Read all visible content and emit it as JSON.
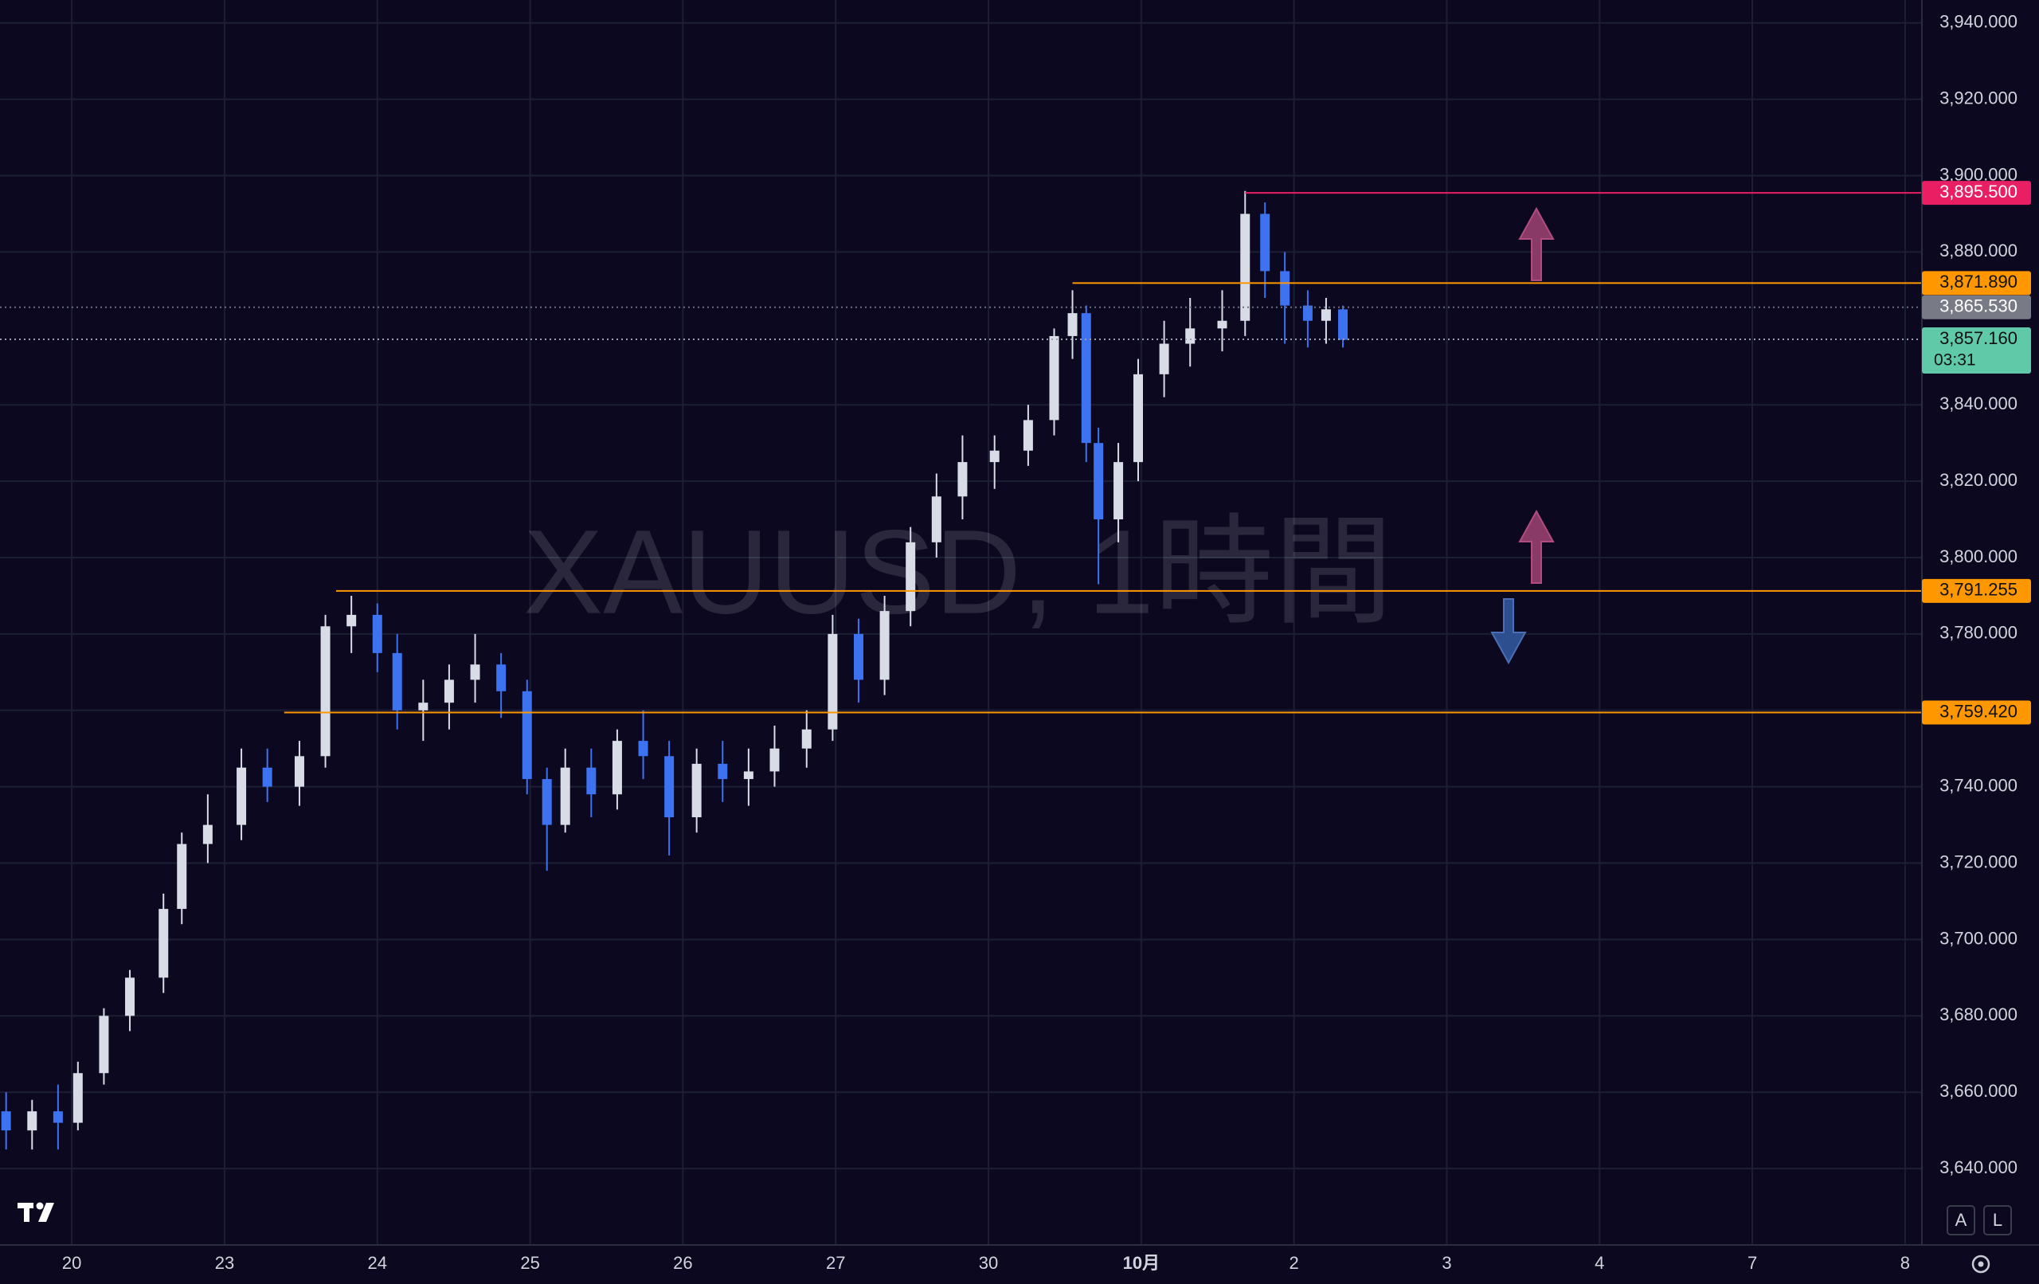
{
  "chart_data": {
    "type": "candlestick",
    "watermark": "XAUUSD, 1時間",
    "xlim": [
      -0.47,
      12.11
    ],
    "ylim": [
      3620,
      3946
    ],
    "grid": true,
    "up_color": "#d8dce6",
    "down_color": "#3d72f0",
    "xticks": [
      {
        "value": 0,
        "label": "20"
      },
      {
        "value": 1,
        "label": "23"
      },
      {
        "value": 2,
        "label": "24"
      },
      {
        "value": 3,
        "label": "25"
      },
      {
        "value": 4,
        "label": "26"
      },
      {
        "value": 5,
        "label": "27"
      },
      {
        "value": 6,
        "label": "30"
      },
      {
        "value": 7,
        "label": "10月"
      },
      {
        "value": 8,
        "label": "2"
      },
      {
        "value": 9,
        "label": "3"
      },
      {
        "value": 10,
        "label": "4"
      },
      {
        "value": 11,
        "label": "7"
      },
      {
        "value": 12,
        "label": "8"
      }
    ],
    "yticks": [
      {
        "value": 3640,
        "label": "3,640.000"
      },
      {
        "value": 3660,
        "label": "3,660.000"
      },
      {
        "value": 3680,
        "label": "3,680.000"
      },
      {
        "value": 3700,
        "label": "3,700.000"
      },
      {
        "value": 3720,
        "label": "3,720.000"
      },
      {
        "value": 3740,
        "label": "3,740.000"
      },
      {
        "value": 3760,
        "label": "3,760.000"
      },
      {
        "value": 3780,
        "label": "3,780.000"
      },
      {
        "value": 3800,
        "label": "3,800.000"
      },
      {
        "value": 3820,
        "label": "3,820.000"
      },
      {
        "value": 3840,
        "label": "3,840.000"
      },
      {
        "value": 3880,
        "label": "3,880.000"
      },
      {
        "value": 3900,
        "label": "3,900.000"
      },
      {
        "value": 3920,
        "label": "3,920.000"
      },
      {
        "value": 3940,
        "label": "3,940.000"
      }
    ],
    "x": [
      -0.43,
      -0.26,
      -0.09,
      0.04,
      0.21,
      0.38,
      0.6,
      0.72,
      0.89,
      1.11,
      1.28,
      1.49,
      1.66,
      1.83,
      2.0,
      2.13,
      2.3,
      2.47,
      2.64,
      2.81,
      2.98,
      3.11,
      3.23,
      3.4,
      3.57,
      3.74,
      3.91,
      4.09,
      4.26,
      4.43,
      4.6,
      4.81,
      4.98,
      5.15,
      5.32,
      5.49,
      5.66,
      5.83,
      6.04,
      6.26,
      6.43,
      6.55,
      6.64,
      6.72,
      6.85,
      6.98,
      7.15,
      7.32,
      7.53,
      7.68,
      7.81,
      7.94,
      8.09,
      8.21,
      8.32
    ],
    "open": [
      3655,
      3650,
      3655,
      3652,
      3665,
      3680,
      3690,
      3708,
      3725,
      3730,
      3745,
      3740,
      3748,
      3782,
      3785,
      3775,
      3760,
      3762,
      3768,
      3772,
      3765,
      3742,
      3730,
      3745,
      3738,
      3752,
      3748,
      3732,
      3746,
      3742,
      3744,
      3750,
      3755,
      3780,
      3768,
      3786,
      3804,
      3816,
      3825,
      3828,
      3836,
      3858,
      3864,
      3830,
      3810,
      3825,
      3848,
      3856,
      3860,
      3862,
      3890,
      3875,
      3866,
      3862,
      3865
    ],
    "high": [
      3660,
      3658,
      3662,
      3668,
      3682,
      3692,
      3712,
      3728,
      3738,
      3750,
      3750,
      3752,
      3785,
      3790,
      3788,
      3780,
      3768,
      3772,
      3780,
      3775,
      3768,
      3745,
      3750,
      3750,
      3755,
      3760,
      3752,
      3750,
      3752,
      3750,
      3756,
      3760,
      3785,
      3784,
      3790,
      3808,
      3822,
      3832,
      3832,
      3840,
      3860,
      3870,
      3866,
      3834,
      3830,
      3852,
      3862,
      3868,
      3870,
      3896,
      3893,
      3880,
      3870,
      3868,
      3866
    ],
    "low": [
      3645,
      3645,
      3645,
      3650,
      3662,
      3676,
      3686,
      3704,
      3720,
      3726,
      3736,
      3735,
      3745,
      3775,
      3770,
      3755,
      3752,
      3755,
      3762,
      3758,
      3738,
      3718,
      3728,
      3732,
      3734,
      3742,
      3722,
      3728,
      3736,
      3735,
      3740,
      3745,
      3752,
      3762,
      3764,
      3782,
      3800,
      3810,
      3818,
      3824,
      3832,
      3852,
      3825,
      3793,
      3804,
      3820,
      3842,
      3850,
      3854,
      3858,
      3868,
      3856,
      3855,
      3856,
      3855
    ],
    "close": [
      3650,
      3655,
      3652,
      3665,
      3680,
      3690,
      3708,
      3725,
      3730,
      3745,
      3740,
      3748,
      3782,
      3785,
      3775,
      3760,
      3762,
      3768,
      3772,
      3765,
      3742,
      3730,
      3745,
      3738,
      3752,
      3748,
      3732,
      3746,
      3742,
      3744,
      3750,
      3755,
      3780,
      3768,
      3786,
      3804,
      3816,
      3825,
      3828,
      3836,
      3858,
      3864,
      3830,
      3810,
      3825,
      3848,
      3856,
      3860,
      3862,
      3890,
      3875,
      3866,
      3862,
      3865,
      3857
    ],
    "levels": [
      {
        "value": 3895.5,
        "label": "3,895.500",
        "from": 7.68,
        "color": "#e91e63",
        "style": "solid"
      },
      {
        "value": 3871.89,
        "label": "3,871.890",
        "from": 6.55,
        "color": "#ff9800",
        "style": "solid"
      },
      {
        "value": 3865.53,
        "label": "3,865.530",
        "from": -0.47,
        "color": "#787b86",
        "style": "dotted"
      },
      {
        "value": 3857.16,
        "label": "3,857.160",
        "from": -0.47,
        "color": "#5fc9a8",
        "style": "dotted",
        "countdown": "03:31"
      },
      {
        "value": 3791.255,
        "label": "3,791.255",
        "from": 1.73,
        "color": "#ff9800",
        "style": "solid"
      },
      {
        "value": 3759.42,
        "label": "3,759.420",
        "from": 1.39,
        "color": "#ff9800",
        "style": "solid"
      }
    ],
    "scale_buttons": [
      "A",
      "L"
    ]
  }
}
